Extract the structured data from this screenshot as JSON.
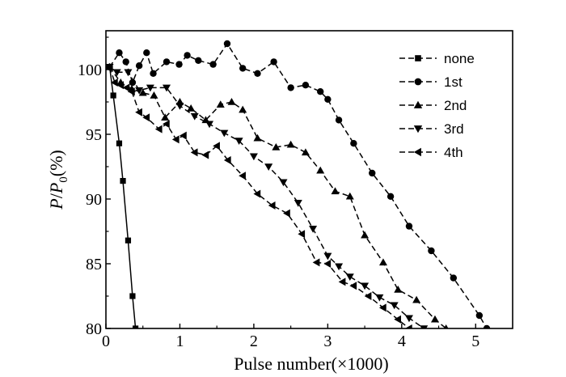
{
  "chart_data": {
    "type": "line",
    "xlabel": "Pulse number(×1000)",
    "ylabel_main": "P",
    "ylabel_slash": "/",
    "ylabel_p": "P",
    "ylabel_sub": "0",
    "ylabel_unit": "(%)",
    "xlim": [
      0,
      5.5
    ],
    "ylim": [
      80,
      103
    ],
    "xticks": [
      0,
      1,
      2,
      3,
      4,
      5
    ],
    "xtick_labels": [
      "0",
      "1",
      "2",
      "3",
      "4",
      "5"
    ],
    "yticks": [
      80,
      85,
      90,
      95,
      100
    ],
    "ytick_labels": [
      "80",
      "85",
      "90",
      "95",
      "100"
    ],
    "grid": false,
    "legend_position": "top-right",
    "series": [
      {
        "name": "none",
        "marker": "square",
        "x": [
          0.05,
          0.1,
          0.18,
          0.23,
          0.3,
          0.36,
          0.4
        ],
        "y": [
          100.2,
          98.0,
          94.3,
          91.4,
          86.8,
          82.5,
          80.0
        ]
      },
      {
        "name": "1st",
        "marker": "circle",
        "x": [
          0.05,
          0.18,
          0.27,
          0.36,
          0.45,
          0.55,
          0.64,
          0.82,
          0.99,
          1.1,
          1.25,
          1.45,
          1.64,
          1.85,
          2.05,
          2.27,
          2.5,
          2.7,
          2.9,
          3.0,
          3.15,
          3.35,
          3.6,
          3.85,
          4.1,
          4.4,
          4.7,
          5.05,
          5.15
        ],
        "y": [
          100.2,
          101.3,
          100.6,
          99.0,
          100.3,
          101.3,
          99.7,
          100.6,
          100.4,
          101.1,
          100.7,
          100.4,
          102.0,
          100.1,
          99.7,
          100.6,
          98.6,
          98.8,
          98.3,
          97.7,
          96.1,
          94.3,
          92.0,
          90.2,
          87.9,
          86.0,
          83.9,
          81.0,
          80.0
        ]
      },
      {
        "name": "2nd",
        "marker": "triangle-up",
        "x": [
          0.05,
          0.2,
          0.35,
          0.5,
          0.65,
          0.8,
          1.0,
          1.15,
          1.35,
          1.55,
          1.7,
          1.85,
          2.05,
          2.3,
          2.5,
          2.7,
          2.9,
          3.1,
          3.3,
          3.5,
          3.75,
          3.95,
          4.2,
          4.45,
          4.6
        ],
        "y": [
          100.2,
          99.0,
          98.5,
          98.2,
          98.0,
          96.3,
          97.5,
          97.0,
          96.1,
          97.3,
          97.5,
          96.9,
          94.7,
          94.0,
          94.2,
          93.6,
          92.2,
          90.6,
          90.2,
          87.2,
          85.1,
          83.0,
          82.2,
          80.7,
          80.0
        ]
      },
      {
        "name": "3rd",
        "marker": "triangle-down",
        "x": [
          0.05,
          0.15,
          0.3,
          0.45,
          0.6,
          0.82,
          1.0,
          1.2,
          1.4,
          1.6,
          1.8,
          2.0,
          2.2,
          2.4,
          2.6,
          2.8,
          3.0,
          3.15,
          3.3,
          3.5,
          3.7,
          3.9,
          4.1,
          4.3
        ],
        "y": [
          100.2,
          99.8,
          99.8,
          98.4,
          98.6,
          98.6,
          97.2,
          96.4,
          95.8,
          95.1,
          94.5,
          93.3,
          92.5,
          91.3,
          89.7,
          87.7,
          85.6,
          84.8,
          84.0,
          83.3,
          82.4,
          81.8,
          80.8,
          80.0
        ]
      },
      {
        "name": "4th",
        "marker": "triangle-left",
        "x": [
          0.05,
          0.12,
          0.2,
          0.28,
          0.35,
          0.45,
          0.55,
          0.72,
          0.82,
          0.95,
          1.05,
          1.2,
          1.35,
          1.5,
          1.65,
          1.85,
          2.05,
          2.25,
          2.45,
          2.65,
          2.85,
          3.0,
          3.2,
          3.35,
          3.55,
          3.75,
          3.95,
          4.1
        ],
        "y": [
          100.2,
          99.0,
          98.8,
          98.6,
          98.3,
          96.7,
          96.3,
          95.4,
          95.8,
          94.6,
          94.9,
          93.6,
          93.4,
          94.1,
          93.0,
          91.8,
          90.4,
          89.5,
          88.9,
          87.3,
          85.1,
          85.0,
          83.6,
          83.3,
          82.5,
          81.6,
          80.7,
          80.0
        ]
      }
    ]
  }
}
